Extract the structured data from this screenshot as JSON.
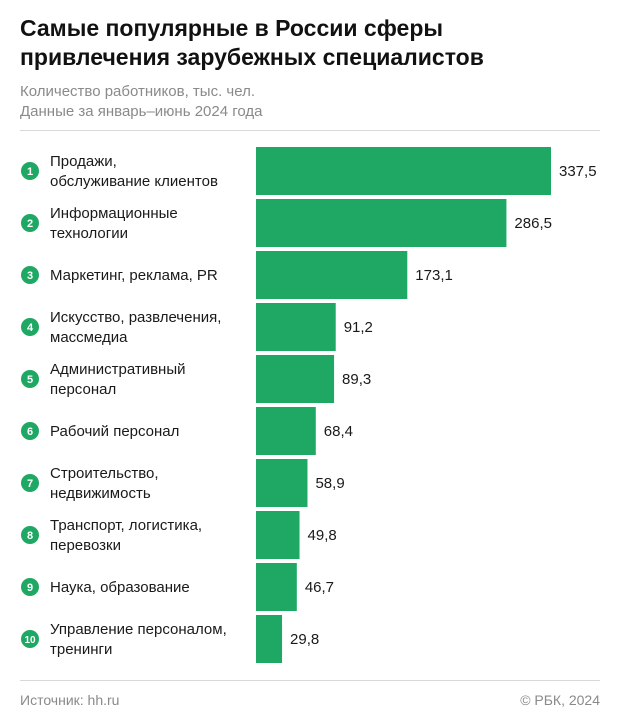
{
  "header": {
    "title_line1": "Самые популярные в России сферы",
    "title_line2": "привлечения зарубежных специалистов",
    "subtitle_line1": "Количество работников, тыс. чел.",
    "subtitle_line2": "Данные за январь–июнь 2024 года"
  },
  "footer": {
    "source": "Источник: hh.ru",
    "copyright": "© РБК, 2024"
  },
  "colors": {
    "bar": "#1fa864",
    "badge": "#1fa864"
  },
  "chart_data": {
    "type": "bar",
    "orientation": "horizontal",
    "categories": [
      [
        "Продажи,",
        "обслуживание клиентов"
      ],
      [
        "Информационные",
        "технологии"
      ],
      [
        "Маркетинг, реклама, PR"
      ],
      [
        "Искусство, развлечения,",
        "массмедиа"
      ],
      [
        "Административный",
        "персонал"
      ],
      [
        "Рабочий персонал"
      ],
      [
        "Строительство,",
        "недвижимость"
      ],
      [
        "Транспорт, логистика,",
        "перевозки"
      ],
      [
        "Наука, образование"
      ],
      [
        "Управление персоналом,",
        "тренинги"
      ]
    ],
    "ranks": [
      "1",
      "2",
      "3",
      "4",
      "5",
      "6",
      "7",
      "8",
      "9",
      "10"
    ],
    "values": [
      337.5,
      286.5,
      173.1,
      91.2,
      89.3,
      68.4,
      58.9,
      49.8,
      46.7,
      29.8
    ],
    "value_labels": [
      "337,5",
      "286,5",
      "173,1",
      "91,2",
      "89,3",
      "68,4",
      "58,9",
      "49,8",
      "46,7",
      "29,8"
    ],
    "xlim": [
      0,
      337.5
    ],
    "grid": false,
    "legend": "none"
  }
}
